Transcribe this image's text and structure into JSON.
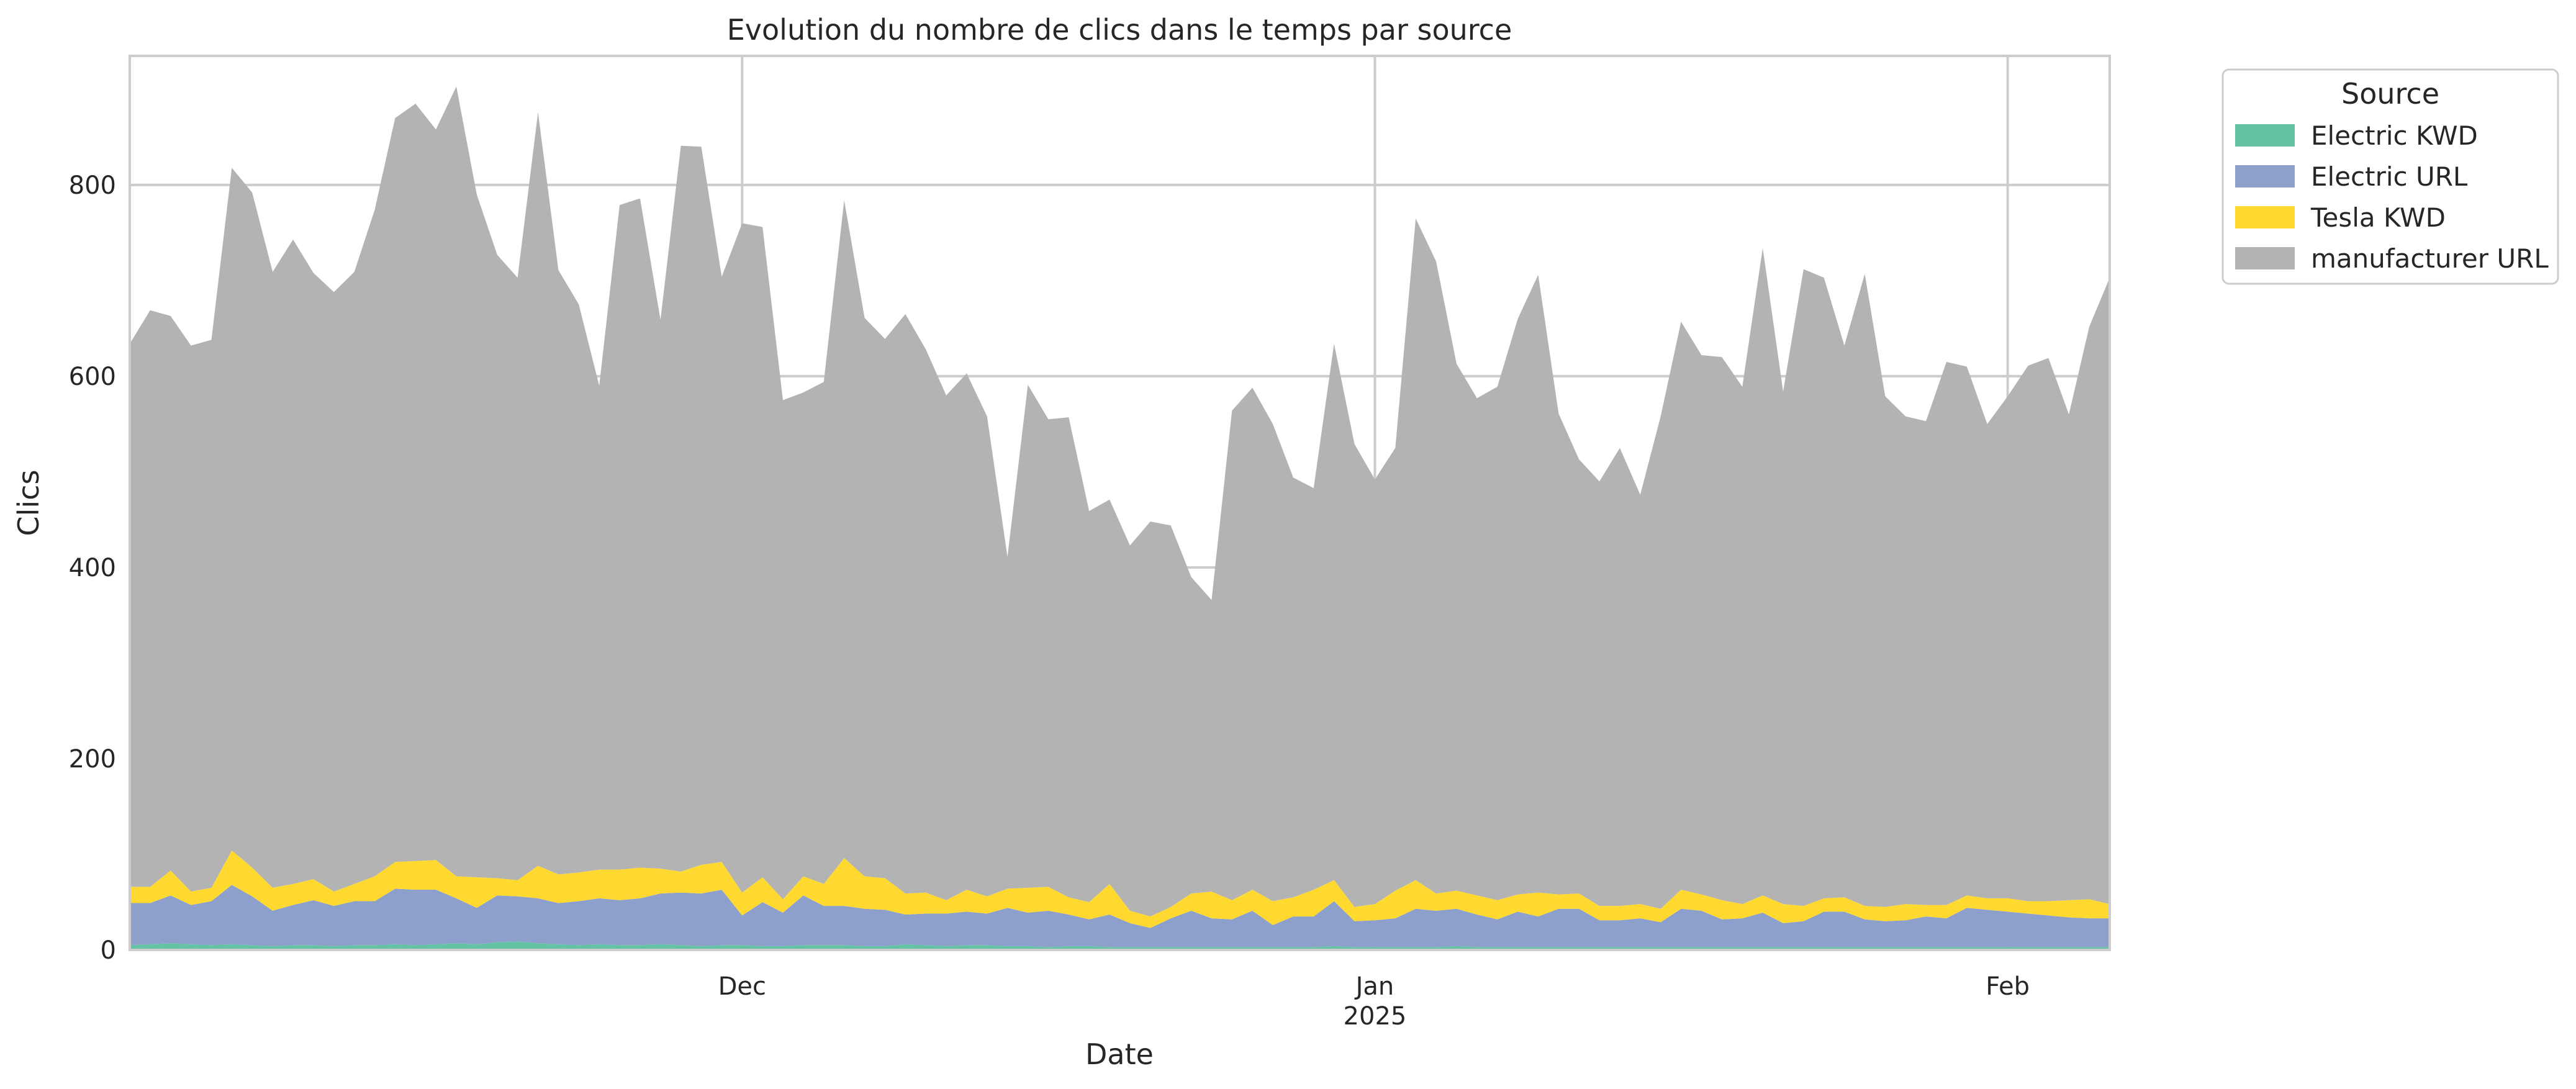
{
  "chart_data": {
    "type": "area",
    "stacked": true,
    "title": "Evolution du nombre de clics dans le temps par source",
    "xlabel": "Date",
    "ylabel": "Clics",
    "x_start": "2024-11-01",
    "x_end": "2025-02-06",
    "ylim": [
      0,
      935
    ],
    "yticks": [
      0,
      200,
      400,
      600,
      800
    ],
    "xticks": [
      {
        "date": "2024-12-01",
        "label": "Dec",
        "sublabel": ""
      },
      {
        "date": "2025-01-01",
        "label": "Jan",
        "sublabel": "2025"
      },
      {
        "date": "2025-02-01",
        "label": "Feb",
        "sublabel": ""
      }
    ],
    "grid": true,
    "legend": {
      "title": "Source",
      "placement": "outside-top-right"
    },
    "series": [
      {
        "name": "Electric KWD",
        "color": "#66c2a5",
        "values": [
          5,
          6,
          7,
          6,
          5,
          6,
          5,
          4,
          5,
          5,
          4,
          5,
          5,
          6,
          5,
          6,
          7,
          6,
          8,
          9,
          7,
          6,
          5,
          6,
          5,
          5,
          6,
          5,
          4,
          5,
          5,
          4,
          4,
          5,
          5,
          5,
          4,
          4,
          6,
          5,
          4,
          5,
          5,
          4,
          4,
          3,
          4,
          4,
          3,
          3,
          3,
          3,
          3,
          3,
          3,
          3,
          3,
          3,
          3,
          4,
          3,
          3,
          3,
          3,
          3,
          4,
          3,
          3,
          3,
          3,
          3,
          3,
          3,
          3,
          3,
          3,
          3,
          3,
          3,
          3,
          3,
          3,
          3,
          3,
          3,
          3,
          3,
          3,
          3,
          3,
          3,
          3,
          3,
          3,
          3,
          3,
          3,
          3
        ]
      },
      {
        "name": "Electric URL",
        "color": "#8da0cb",
        "values": [
          44,
          43,
          50,
          41,
          46,
          62,
          51,
          37,
          42,
          47,
          42,
          46,
          46,
          58,
          58,
          57,
          47,
          38,
          49,
          47,
          47,
          43,
          46,
          48,
          47,
          49,
          53,
          55,
          55,
          58,
          31,
          46,
          35,
          52,
          41,
          41,
          39,
          38,
          31,
          33,
          34,
          35,
          33,
          40,
          35,
          38,
          33,
          28,
          34,
          25,
          20,
          30,
          38,
          30,
          29,
          38,
          23,
          32,
          32,
          47,
          27,
          28,
          30,
          40,
          38,
          39,
          34,
          29,
          37,
          32,
          40,
          40,
          28,
          28,
          30,
          26,
          40,
          38,
          29,
          30,
          36,
          25,
          27,
          37,
          37,
          29,
          27,
          28,
          32,
          30,
          41,
          39,
          37,
          35,
          33,
          31,
          30,
          30
        ]
      },
      {
        "name": "Tesla KWD",
        "color": "#ffd92f",
        "values": [
          17,
          17,
          26,
          14,
          14,
          36,
          30,
          24,
          22,
          22,
          15,
          18,
          26,
          28,
          30,
          31,
          23,
          32,
          18,
          17,
          34,
          30,
          30,
          30,
          32,
          32,
          26,
          22,
          30,
          29,
          24,
          26,
          14,
          20,
          23,
          50,
          34,
          33,
          22,
          22,
          14,
          23,
          18,
          20,
          26,
          25,
          18,
          18,
          32,
          13,
          12,
          12,
          18,
          28,
          20,
          22,
          25,
          20,
          28,
          22,
          15,
          17,
          29,
          30,
          18,
          19,
          20,
          20,
          18,
          25,
          15,
          16,
          15,
          15,
          15,
          14,
          20,
          17,
          20,
          15,
          18,
          20,
          16,
          14,
          15,
          14,
          15,
          17,
          12,
          14,
          13,
          12,
          14,
          13,
          15,
          18,
          20,
          15
        ]
      },
      {
        "name": "manufacturer URL",
        "color": "#b3b3b3",
        "values": [
          568,
          603,
          580,
          571,
          573,
          714,
          706,
          644,
          674,
          634,
          627,
          640,
          697,
          778,
          792,
          764,
          826,
          714,
          652,
          630,
          788,
          632,
          594,
          506,
          695,
          700,
          574,
          759,
          751,
          612,
          700,
          680,
          522,
          506,
          525,
          688,
          584,
          564,
          606,
          568,
          528,
          540,
          502,
          347,
          526,
          489,
          502,
          409,
          402,
          382,
          413,
          399,
          331,
          305,
          512,
          525,
          499,
          439,
          420,
          561,
          484,
          444,
          463,
          692,
          661,
          551,
          520,
          537,
          602,
          646,
          503,
          454,
          444,
          479,
          428,
          515,
          594,
          564,
          568,
          541,
          677,
          536,
          666,
          649,
          577,
          661,
          534,
          510,
          506,
          568,
          553,
          496,
          525,
          560,
          568,
          508,
          599,
          655
        ]
      }
    ]
  }
}
